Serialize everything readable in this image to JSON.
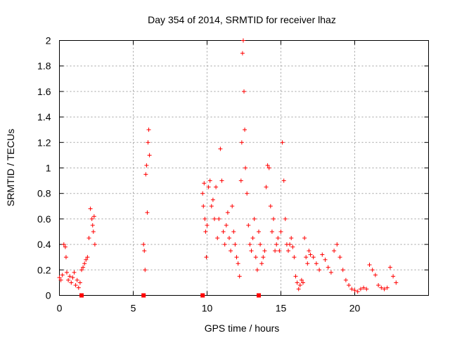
{
  "chart_data": {
    "type": "scatter",
    "title": "Day 354 of 2014, SRMTID for receiver lhaz",
    "xlabel": "GPS time / hours",
    "ylabel": "SRMTID / TECUs",
    "xlim": [
      0,
      25
    ],
    "ylim": [
      0,
      2
    ],
    "xticks": [
      0,
      5,
      10,
      15,
      20
    ],
    "yticks": [
      0,
      0.2,
      0.4,
      0.6,
      0.8,
      1,
      1.2,
      1.4,
      1.6,
      1.8,
      2
    ],
    "ytick_labels": [
      "0",
      "0.2",
      "0.4",
      "0.6",
      "0.8",
      "1",
      "1.2",
      "1.4",
      "1.6",
      "1.8",
      "2"
    ],
    "xtick_labels": [
      "0",
      "5",
      "10",
      "15",
      "20"
    ],
    "grid": true,
    "marker": "+",
    "color": "#ff0000",
    "series": [
      {
        "name": "SRMTID",
        "x": [
          0.0,
          0.1,
          0.2,
          0.3,
          0.4,
          0.45,
          0.5,
          0.6,
          0.7,
          0.8,
          0.9,
          1.0,
          1.1,
          1.2,
          1.3,
          1.4,
          1.5,
          1.6,
          1.7,
          1.8,
          1.9,
          2.0,
          2.1,
          2.2,
          2.25,
          2.3,
          2.35,
          2.4,
          5.7,
          5.75,
          5.8,
          5.85,
          5.9,
          5.95,
          6.0,
          6.05,
          6.1,
          9.7,
          9.75,
          9.8,
          9.85,
          9.9,
          9.95,
          10.0,
          10.1,
          10.2,
          10.3,
          10.4,
          10.5,
          10.6,
          10.7,
          10.8,
          10.9,
          11.0,
          11.1,
          11.2,
          11.3,
          11.4,
          11.5,
          11.6,
          11.7,
          11.8,
          11.9,
          12.0,
          12.1,
          12.2,
          12.3,
          12.35,
          12.4,
          12.45,
          12.5,
          12.55,
          12.6,
          12.7,
          12.8,
          12.9,
          13.0,
          13.1,
          13.2,
          13.3,
          13.4,
          13.5,
          13.6,
          13.7,
          13.8,
          13.9,
          14.0,
          14.1,
          14.2,
          14.3,
          14.4,
          14.5,
          14.6,
          14.7,
          14.8,
          14.9,
          15.0,
          15.1,
          15.2,
          15.3,
          15.4,
          15.5,
          15.6,
          15.7,
          15.8,
          15.9,
          16.0,
          16.1,
          16.2,
          16.3,
          16.4,
          16.5,
          16.6,
          16.7,
          16.8,
          16.9,
          17.0,
          17.2,
          17.4,
          17.6,
          17.8,
          18.0,
          18.2,
          18.4,
          18.6,
          18.8,
          19.0,
          19.2,
          19.4,
          19.6,
          19.8,
          20.0,
          20.2,
          20.4,
          20.6,
          20.8,
          21.0,
          21.2,
          21.4,
          21.6,
          21.8,
          22.0,
          22.2,
          22.4,
          22.6,
          22.8
        ],
        "y": [
          0.14,
          0.12,
          0.16,
          0.4,
          0.38,
          0.3,
          0.18,
          0.12,
          0.15,
          0.1,
          0.14,
          0.18,
          0.08,
          0.12,
          0.06,
          0.1,
          0.2,
          0.22,
          0.25,
          0.28,
          0.3,
          0.45,
          0.68,
          0.6,
          0.55,
          0.5,
          0.62,
          0.4,
          0.4,
          0.35,
          0.2,
          0.95,
          1.02,
          0.65,
          1.2,
          1.3,
          1.1,
          0.8,
          0.7,
          0.88,
          0.6,
          0.5,
          0.3,
          0.55,
          0.85,
          0.9,
          0.7,
          0.75,
          0.6,
          0.85,
          0.45,
          0.6,
          1.15,
          0.9,
          0.5,
          0.4,
          0.55,
          0.65,
          0.45,
          0.35,
          0.7,
          0.5,
          0.4,
          0.3,
          0.25,
          0.15,
          0.9,
          1.2,
          1.9,
          2.0,
          1.6,
          1.3,
          1.0,
          0.8,
          0.55,
          0.4,
          0.35,
          0.45,
          0.6,
          0.3,
          0.2,
          0.5,
          0.4,
          0.25,
          0.3,
          0.35,
          0.85,
          1.02,
          1.0,
          0.7,
          0.5,
          0.6,
          0.35,
          0.4,
          0.45,
          0.35,
          0.5,
          1.2,
          0.9,
          0.6,
          0.4,
          0.35,
          0.4,
          0.45,
          0.38,
          0.3,
          0.15,
          0.1,
          0.05,
          0.08,
          0.12,
          0.1,
          0.45,
          0.3,
          0.25,
          0.35,
          0.32,
          0.3,
          0.25,
          0.2,
          0.32,
          0.28,
          0.22,
          0.18,
          0.35,
          0.4,
          0.3,
          0.2,
          0.12,
          0.08,
          0.05,
          0.04,
          0.03,
          0.05,
          0.06,
          0.05,
          0.24,
          0.2,
          0.16,
          0.08,
          0.06,
          0.05,
          0.06,
          0.22,
          0.15,
          0.1
        ]
      }
    ],
    "markers_on_axis": [
      1.5,
      5.7,
      9.7,
      13.5
    ]
  }
}
